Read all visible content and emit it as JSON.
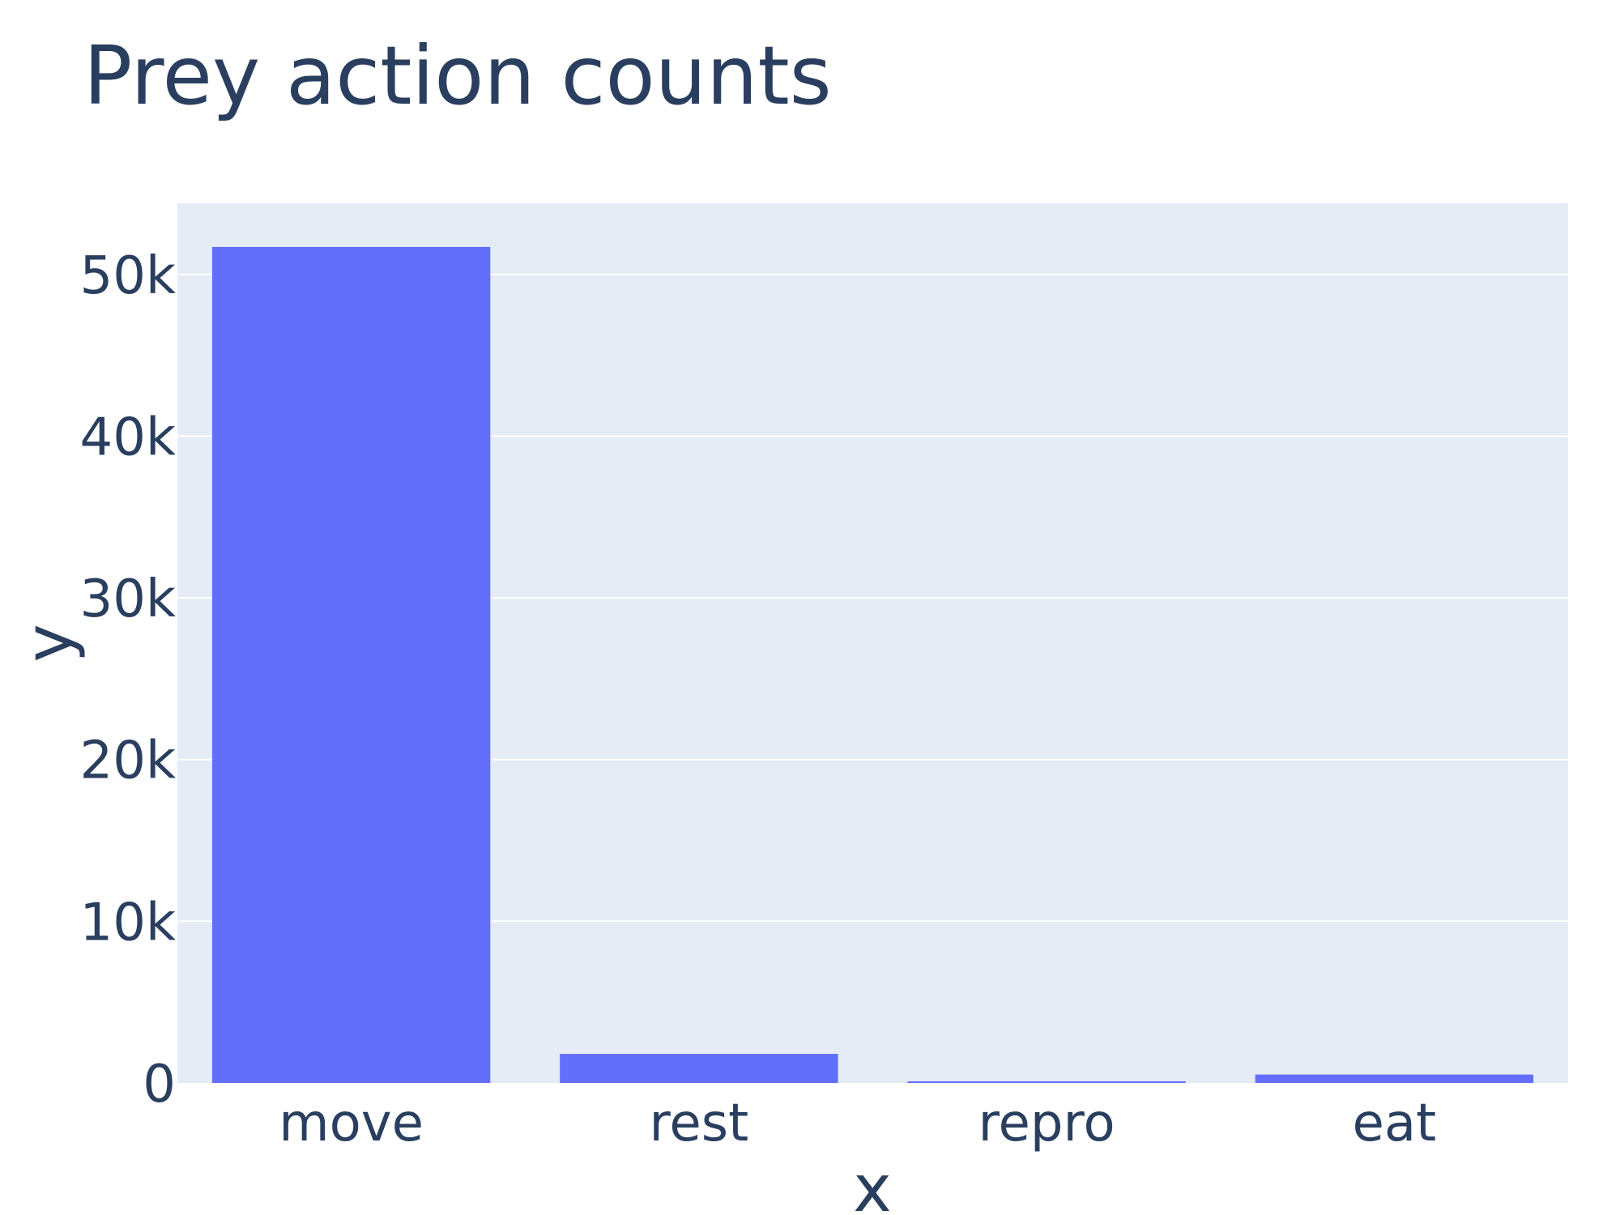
{
  "chart_data": {
    "type": "bar",
    "title": "Prey action counts",
    "xlabel": "x",
    "ylabel": "y",
    "categories": [
      "move",
      "rest",
      "repro",
      "eat"
    ],
    "values": [
      51700,
      1800,
      100,
      520
    ],
    "ylim": [
      0,
      54400
    ],
    "yticks": [
      0,
      10000,
      20000,
      30000,
      40000,
      50000
    ],
    "ytick_labels": [
      "0",
      "10k",
      "20k",
      "30k",
      "40k",
      "50k"
    ],
    "grid": true,
    "legend": "none",
    "colors": {
      "bar": "#636efa",
      "plot_background": "#e5ecf6",
      "grid": "#ffffff",
      "text": "#2a3f5f"
    }
  }
}
